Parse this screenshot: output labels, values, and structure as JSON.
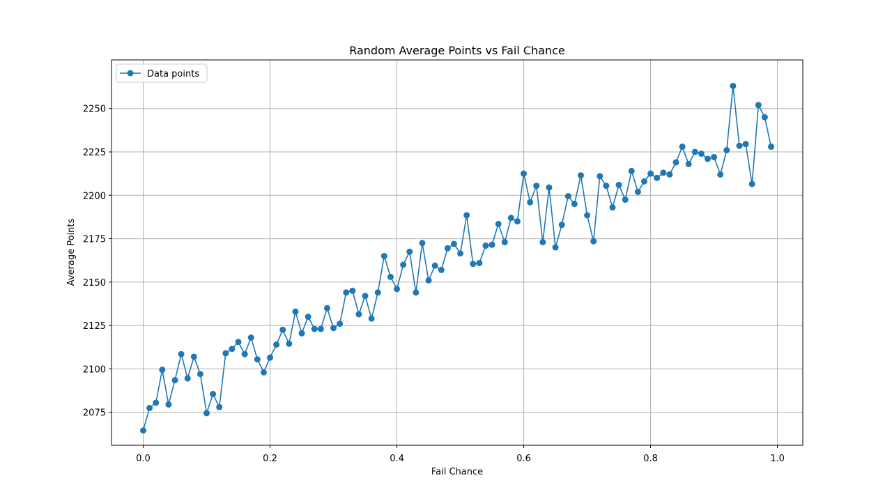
{
  "chart_data": {
    "type": "line",
    "title": "Random Average Points vs Fail Chance",
    "xlabel": "Fail Chance",
    "ylabel": "Average Points",
    "xlim": [
      -0.05,
      1.04
    ],
    "ylim": [
      2056,
      2278
    ],
    "x_ticks": [
      0.0,
      0.2,
      0.4,
      0.6,
      0.8,
      1.0
    ],
    "x_tick_labels": [
      "0.0",
      "0.2",
      "0.4",
      "0.6",
      "0.8",
      "1.0"
    ],
    "y_ticks": [
      2075,
      2100,
      2125,
      2150,
      2175,
      2200,
      2225,
      2250
    ],
    "y_tick_labels": [
      "2075",
      "2100",
      "2125",
      "2150",
      "2175",
      "2200",
      "2225",
      "2250"
    ],
    "grid": true,
    "legend_position": "top-left",
    "color": "#1f77b4",
    "series": [
      {
        "name": "Data points",
        "x": [
          0.0,
          0.01,
          0.02,
          0.03,
          0.04,
          0.05,
          0.06,
          0.07,
          0.08,
          0.09,
          0.1,
          0.11,
          0.12,
          0.13,
          0.14,
          0.15,
          0.16,
          0.17,
          0.18,
          0.19,
          0.2,
          0.21,
          0.22,
          0.23,
          0.24,
          0.25,
          0.26,
          0.27,
          0.28,
          0.29,
          0.3,
          0.31,
          0.32,
          0.33,
          0.34,
          0.35,
          0.36,
          0.37,
          0.38,
          0.39,
          0.4,
          0.41,
          0.42,
          0.43,
          0.44,
          0.45,
          0.46,
          0.47,
          0.48,
          0.49,
          0.5,
          0.51,
          0.52,
          0.53,
          0.54,
          0.55,
          0.56,
          0.57,
          0.58,
          0.59,
          0.6,
          0.61,
          0.62,
          0.63,
          0.64,
          0.65,
          0.66,
          0.67,
          0.68,
          0.69,
          0.7,
          0.71,
          0.72,
          0.73,
          0.74,
          0.75,
          0.76,
          0.77,
          0.78,
          0.79,
          0.8,
          0.81,
          0.82,
          0.83,
          0.84,
          0.85,
          0.86,
          0.87,
          0.88,
          0.89,
          0.9,
          0.91,
          0.92,
          0.93,
          0.94,
          0.95,
          0.96,
          0.97,
          0.98,
          0.99
        ],
        "y": [
          2064.5,
          2077.5,
          2080.5,
          2099.5,
          2079.5,
          2093.5,
          2108.5,
          2094.5,
          2107.0,
          2097.0,
          2074.5,
          2085.5,
          2078.0,
          2109.0,
          2111.5,
          2115.5,
          2108.5,
          2118.0,
          2105.5,
          2098.0,
          2106.5,
          2114.0,
          2122.5,
          2114.5,
          2133.0,
          2120.5,
          2130.0,
          2123.0,
          2123.0,
          2135.0,
          2123.5,
          2126.0,
          2144.0,
          2145.0,
          2131.5,
          2142.0,
          2129.0,
          2144.0,
          2165.0,
          2153.0,
          2146.0,
          2160.0,
          2167.5,
          2144.0,
          2172.5,
          2151.0,
          2159.5,
          2157.0,
          2169.5,
          2172.0,
          2166.5,
          2188.5,
          2160.5,
          2161.0,
          2171.0,
          2171.5,
          2183.5,
          2173.0,
          2187.0,
          2185.0,
          2212.5,
          2196.0,
          2205.5,
          2173.0,
          2204.5,
          2170.0,
          2183.0,
          2199.5,
          2195.0,
          2211.5,
          2188.5,
          2173.5,
          2211.0,
          2205.5,
          2193.0,
          2206.0,
          2197.5,
          2214.0,
          2202.0,
          2208.0,
          2212.5,
          2210.0,
          2213.0,
          2212.0,
          2219.0,
          2228.0,
          2218.0,
          2225.0,
          2224.0,
          2221.0,
          2222.0,
          2212.0,
          2226.0,
          2263.0,
          2228.5,
          2229.5,
          2206.5,
          2252.0,
          2245.0,
          2228.0
        ]
      }
    ]
  }
}
